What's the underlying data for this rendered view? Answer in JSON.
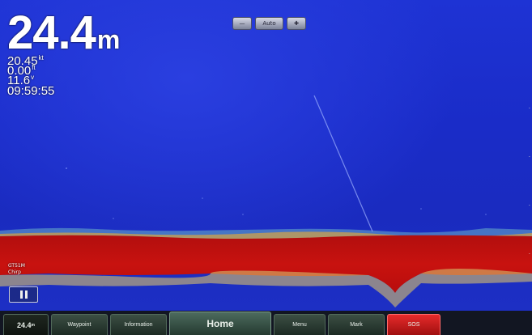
{
  "readouts": {
    "depth_value": "24.4",
    "depth_unit": "m",
    "speed_value": "20.45",
    "speed_unit": "kt",
    "distance_value": "0.00",
    "distance_unit": "ft",
    "voltage_value": "11.6",
    "voltage_unit": "v",
    "time": "09:59:55"
  },
  "zoom": {
    "label": "Auto"
  },
  "transducer": {
    "line1": "GT51M",
    "line2": "Chirp"
  },
  "nav": {
    "depth_value": "24.4",
    "depth_unit": "m",
    "waypoint": "Waypoint",
    "information": "Information",
    "home": "Home",
    "menu": "Menu",
    "mark": "Mark",
    "sos": "SOS"
  },
  "colors": {
    "water": "#1c2fcc",
    "bottom_return": "#c81010",
    "sos": "#e62b2b"
  }
}
